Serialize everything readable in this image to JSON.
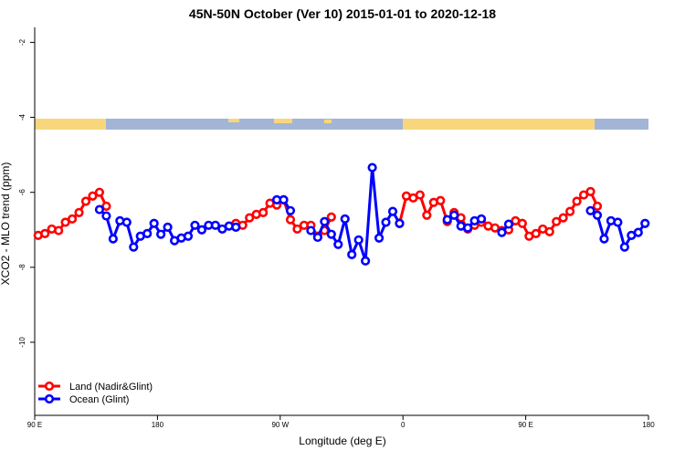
{
  "chart_data": {
    "type": "line",
    "title": "45N-50N October (Ver 10)   2015-01-01 to 2020-12-18",
    "x_label": "Longitude (deg E)",
    "y_label": "XCO2 - MLO trend (ppm)",
    "x": [
      92.5,
      97.5,
      102.5,
      107.5,
      112.5,
      117.5,
      122.5,
      127.5,
      132.5,
      137.5,
      142.5,
      147.5,
      152.5,
      157.5,
      162.5,
      167.5,
      172.5,
      177.5,
      182.5,
      187.5,
      192.5,
      197.5,
      202.5,
      207.5,
      212.5,
      217.5,
      222.5,
      227.5,
      232.5,
      237.5,
      242.5,
      247.5,
      252.5,
      257.5,
      262.5,
      267.5,
      272.5,
      277.5,
      282.5,
      287.5,
      292.5,
      297.5,
      302.5,
      307.5,
      312.5,
      317.5,
      322.5,
      327.5,
      332.5,
      337.5,
      342.5,
      347.5,
      352.5,
      357.5,
      362.5,
      367.5,
      372.5,
      377.5,
      382.5,
      387.5,
      392.5,
      397.5,
      402.5,
      407.5,
      412.5,
      417.5,
      422.5,
      427.5,
      432.5,
      437.5,
      442.5,
      447.5,
      452.5,
      457.5,
      462.5,
      467.5,
      472.5,
      477.5,
      482.5,
      487.5,
      492.5,
      497.5,
      502.5,
      507.5,
      512.5,
      517.5,
      522.5,
      527.5,
      532.5,
      537.5
    ],
    "series": [
      {
        "name": "Land (Nadir&Glint)",
        "color": "#ff0000",
        "values": [
          -7.15,
          -7.1,
          -6.98,
          -7.02,
          -6.8,
          -6.71,
          -6.54,
          -6.24,
          -6.1,
          -6.0,
          -6.37,
          null,
          null,
          null,
          null,
          null,
          null,
          null,
          null,
          null,
          null,
          null,
          null,
          null,
          null,
          null,
          null,
          null,
          null,
          -6.83,
          -6.88,
          -6.68,
          -6.59,
          -6.54,
          -6.29,
          -6.34,
          -6.2,
          -6.73,
          -6.98,
          -6.88,
          -6.88,
          -7.17,
          -7.02,
          -6.66,
          null,
          null,
          null,
          null,
          null,
          null,
          null,
          null,
          null,
          -6.83,
          -6.1,
          -6.15,
          -6.07,
          -6.61,
          -6.27,
          -6.22,
          -6.78,
          -6.54,
          -6.68,
          -6.98,
          -6.88,
          -6.8,
          -6.9,
          -6.95,
          -7.02,
          -7.0,
          -6.76,
          -6.83,
          -7.17,
          -7.1,
          -6.98,
          -7.05,
          -6.78,
          -6.68,
          -6.51,
          -6.24,
          -6.07,
          -5.98,
          -6.37,
          null,
          null,
          null,
          null,
          null,
          null,
          null
        ]
      },
      {
        "name": "Ocean (Glint)",
        "color": "#0000ff",
        "values": [
          null,
          null,
          null,
          null,
          null,
          null,
          null,
          null,
          null,
          -6.46,
          -6.63,
          -7.24,
          -6.76,
          -6.8,
          -7.46,
          -7.17,
          -7.1,
          -6.83,
          -7.12,
          -6.93,
          -7.29,
          -7.22,
          -7.17,
          -6.88,
          -7.0,
          -6.88,
          -6.88,
          -6.98,
          -6.9,
          -6.93,
          null,
          null,
          null,
          null,
          null,
          -6.2,
          -6.2,
          -6.49,
          null,
          null,
          -7.02,
          -7.2,
          -6.78,
          -7.12,
          -7.39,
          -6.71,
          -7.66,
          -7.27,
          -7.83,
          -5.34,
          -7.22,
          -6.8,
          -6.51,
          -6.83,
          null,
          null,
          null,
          null,
          null,
          null,
          -6.73,
          -6.61,
          -6.9,
          -6.95,
          -6.76,
          -6.71,
          null,
          null,
          -7.07,
          -6.85,
          null,
          null,
          null,
          null,
          null,
          null,
          null,
          null,
          null,
          null,
          null,
          -6.49,
          -6.61,
          -7.24,
          -6.76,
          -6.8,
          -7.46,
          -7.15,
          -7.07,
          -6.83
        ]
      }
    ],
    "xlim": [
      90,
      540
    ],
    "xticks": [
      {
        "value": 90,
        "label": "90 E"
      },
      180,
      {
        "value": 270,
        "label": "90 W"
      },
      {
        "value": 360,
        "label": "0"
      },
      {
        "value": 450,
        "label": "90 E"
      },
      {
        "value": 540,
        "label": "180"
      }
    ],
    "ylim": [
      -11.95,
      -1.6
    ],
    "yticks": [
      -2,
      -4,
      -6,
      -8,
      -10
    ],
    "legend": "bottom-left"
  }
}
